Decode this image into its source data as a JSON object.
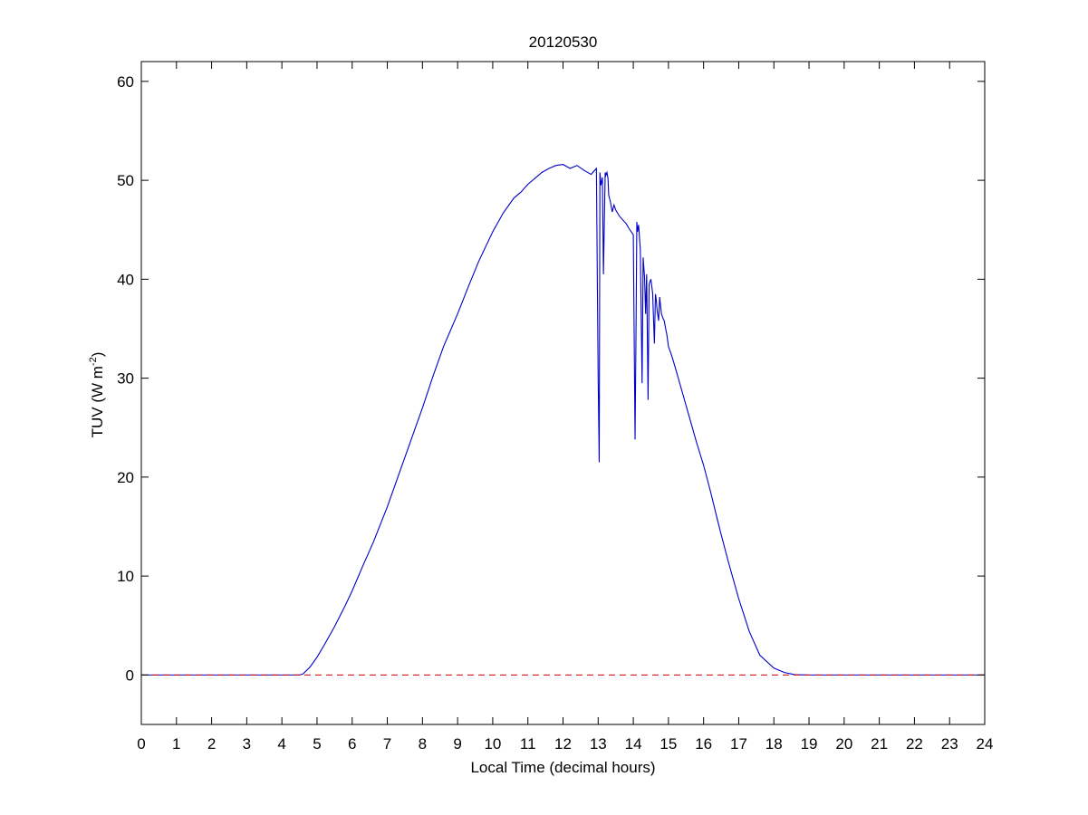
{
  "chart_data": {
    "type": "line",
    "title": "20120530",
    "xlabel": "Local Time (decimal hours)",
    "ylabel": "TUV (W m",
    "ylabel_sup": "-2",
    "ylabel_end": ")",
    "xlim": [
      0,
      24
    ],
    "ylim": [
      -5,
      62
    ],
    "xticks": [
      0,
      1,
      2,
      3,
      4,
      5,
      6,
      7,
      8,
      9,
      10,
      11,
      12,
      13,
      14,
      15,
      16,
      17,
      18,
      19,
      20,
      21,
      22,
      23,
      24
    ],
    "yticks": [
      0,
      10,
      20,
      30,
      40,
      50,
      60
    ],
    "grid": false,
    "series": [
      {
        "color": "#0000c8",
        "style": "solid",
        "x": [
          0,
          4.5,
          4.6,
          4.8,
          5.0,
          5.2,
          5.5,
          5.8,
          6.0,
          6.3,
          6.6,
          7.0,
          7.4,
          7.8,
          8.0,
          8.3,
          8.6,
          9.0,
          9.3,
          9.6,
          10.0,
          10.3,
          10.6,
          10.8,
          11.0,
          11.2,
          11.4,
          11.6,
          11.8,
          12.0,
          12.2,
          12.4,
          12.6,
          12.8,
          12.95,
          13.0,
          13.03,
          13.05,
          13.08,
          13.12,
          13.15,
          13.2,
          13.22,
          13.25,
          13.28,
          13.3,
          13.35,
          13.4,
          13.45,
          13.5,
          13.6,
          13.7,
          13.8,
          13.9,
          14.0,
          14.05,
          14.08,
          14.1,
          14.12,
          14.15,
          14.2,
          14.25,
          14.28,
          14.32,
          14.35,
          14.38,
          14.42,
          14.45,
          14.5,
          14.55,
          14.6,
          14.63,
          14.65,
          14.68,
          14.72,
          14.75,
          14.8,
          14.85,
          14.88,
          14.92,
          14.95,
          15.0,
          15.1,
          15.2,
          15.4,
          15.6,
          15.8,
          16.0,
          16.2,
          16.4,
          16.5,
          16.7,
          17.0,
          17.3,
          17.6,
          18.0,
          18.3,
          18.6,
          19.0,
          19.3,
          19.5,
          19.7,
          19.9,
          20.0,
          24.0
        ],
        "y": [
          0,
          0,
          0.1,
          0.8,
          1.8,
          3.0,
          4.9,
          7.0,
          8.5,
          11.0,
          13.4,
          17.0,
          21.0,
          25.0,
          27.0,
          30.2,
          33.2,
          36.5,
          39.2,
          41.8,
          44.8,
          46.7,
          48.2,
          48.8,
          49.6,
          50.2,
          50.8,
          51.2,
          51.5,
          51.6,
          51.2,
          51.5,
          51.0,
          50.6,
          51.2,
          30.0,
          21.5,
          50.8,
          49.5,
          50.3,
          40.5,
          50.8,
          50.5,
          50.8,
          50.2,
          48.5,
          47.8,
          46.8,
          47.5,
          47.0,
          46.4,
          46.0,
          45.6,
          45.0,
          44.5,
          23.8,
          36.0,
          45.8,
          44.8,
          45.5,
          43.0,
          29.5,
          42.2,
          40.2,
          36.5,
          40.5,
          27.8,
          39.5,
          40.0,
          38.6,
          33.5,
          38.5,
          38.0,
          36.8,
          35.8,
          38.2,
          36.5,
          36.0,
          35.8,
          35.0,
          34.5,
          33.2,
          32.2,
          31.0,
          28.5,
          26.0,
          23.5,
          21.2,
          18.5,
          15.6,
          14.2,
          11.5,
          7.7,
          4.4,
          2.0,
          0.7,
          0.25,
          0.03,
          0,
          0,
          0,
          0,
          0,
          0,
          0
        ]
      },
      {
        "color": "#cc0000",
        "style": "dashed",
        "x": [
          0,
          24
        ],
        "y": [
          0,
          0
        ]
      }
    ]
  }
}
